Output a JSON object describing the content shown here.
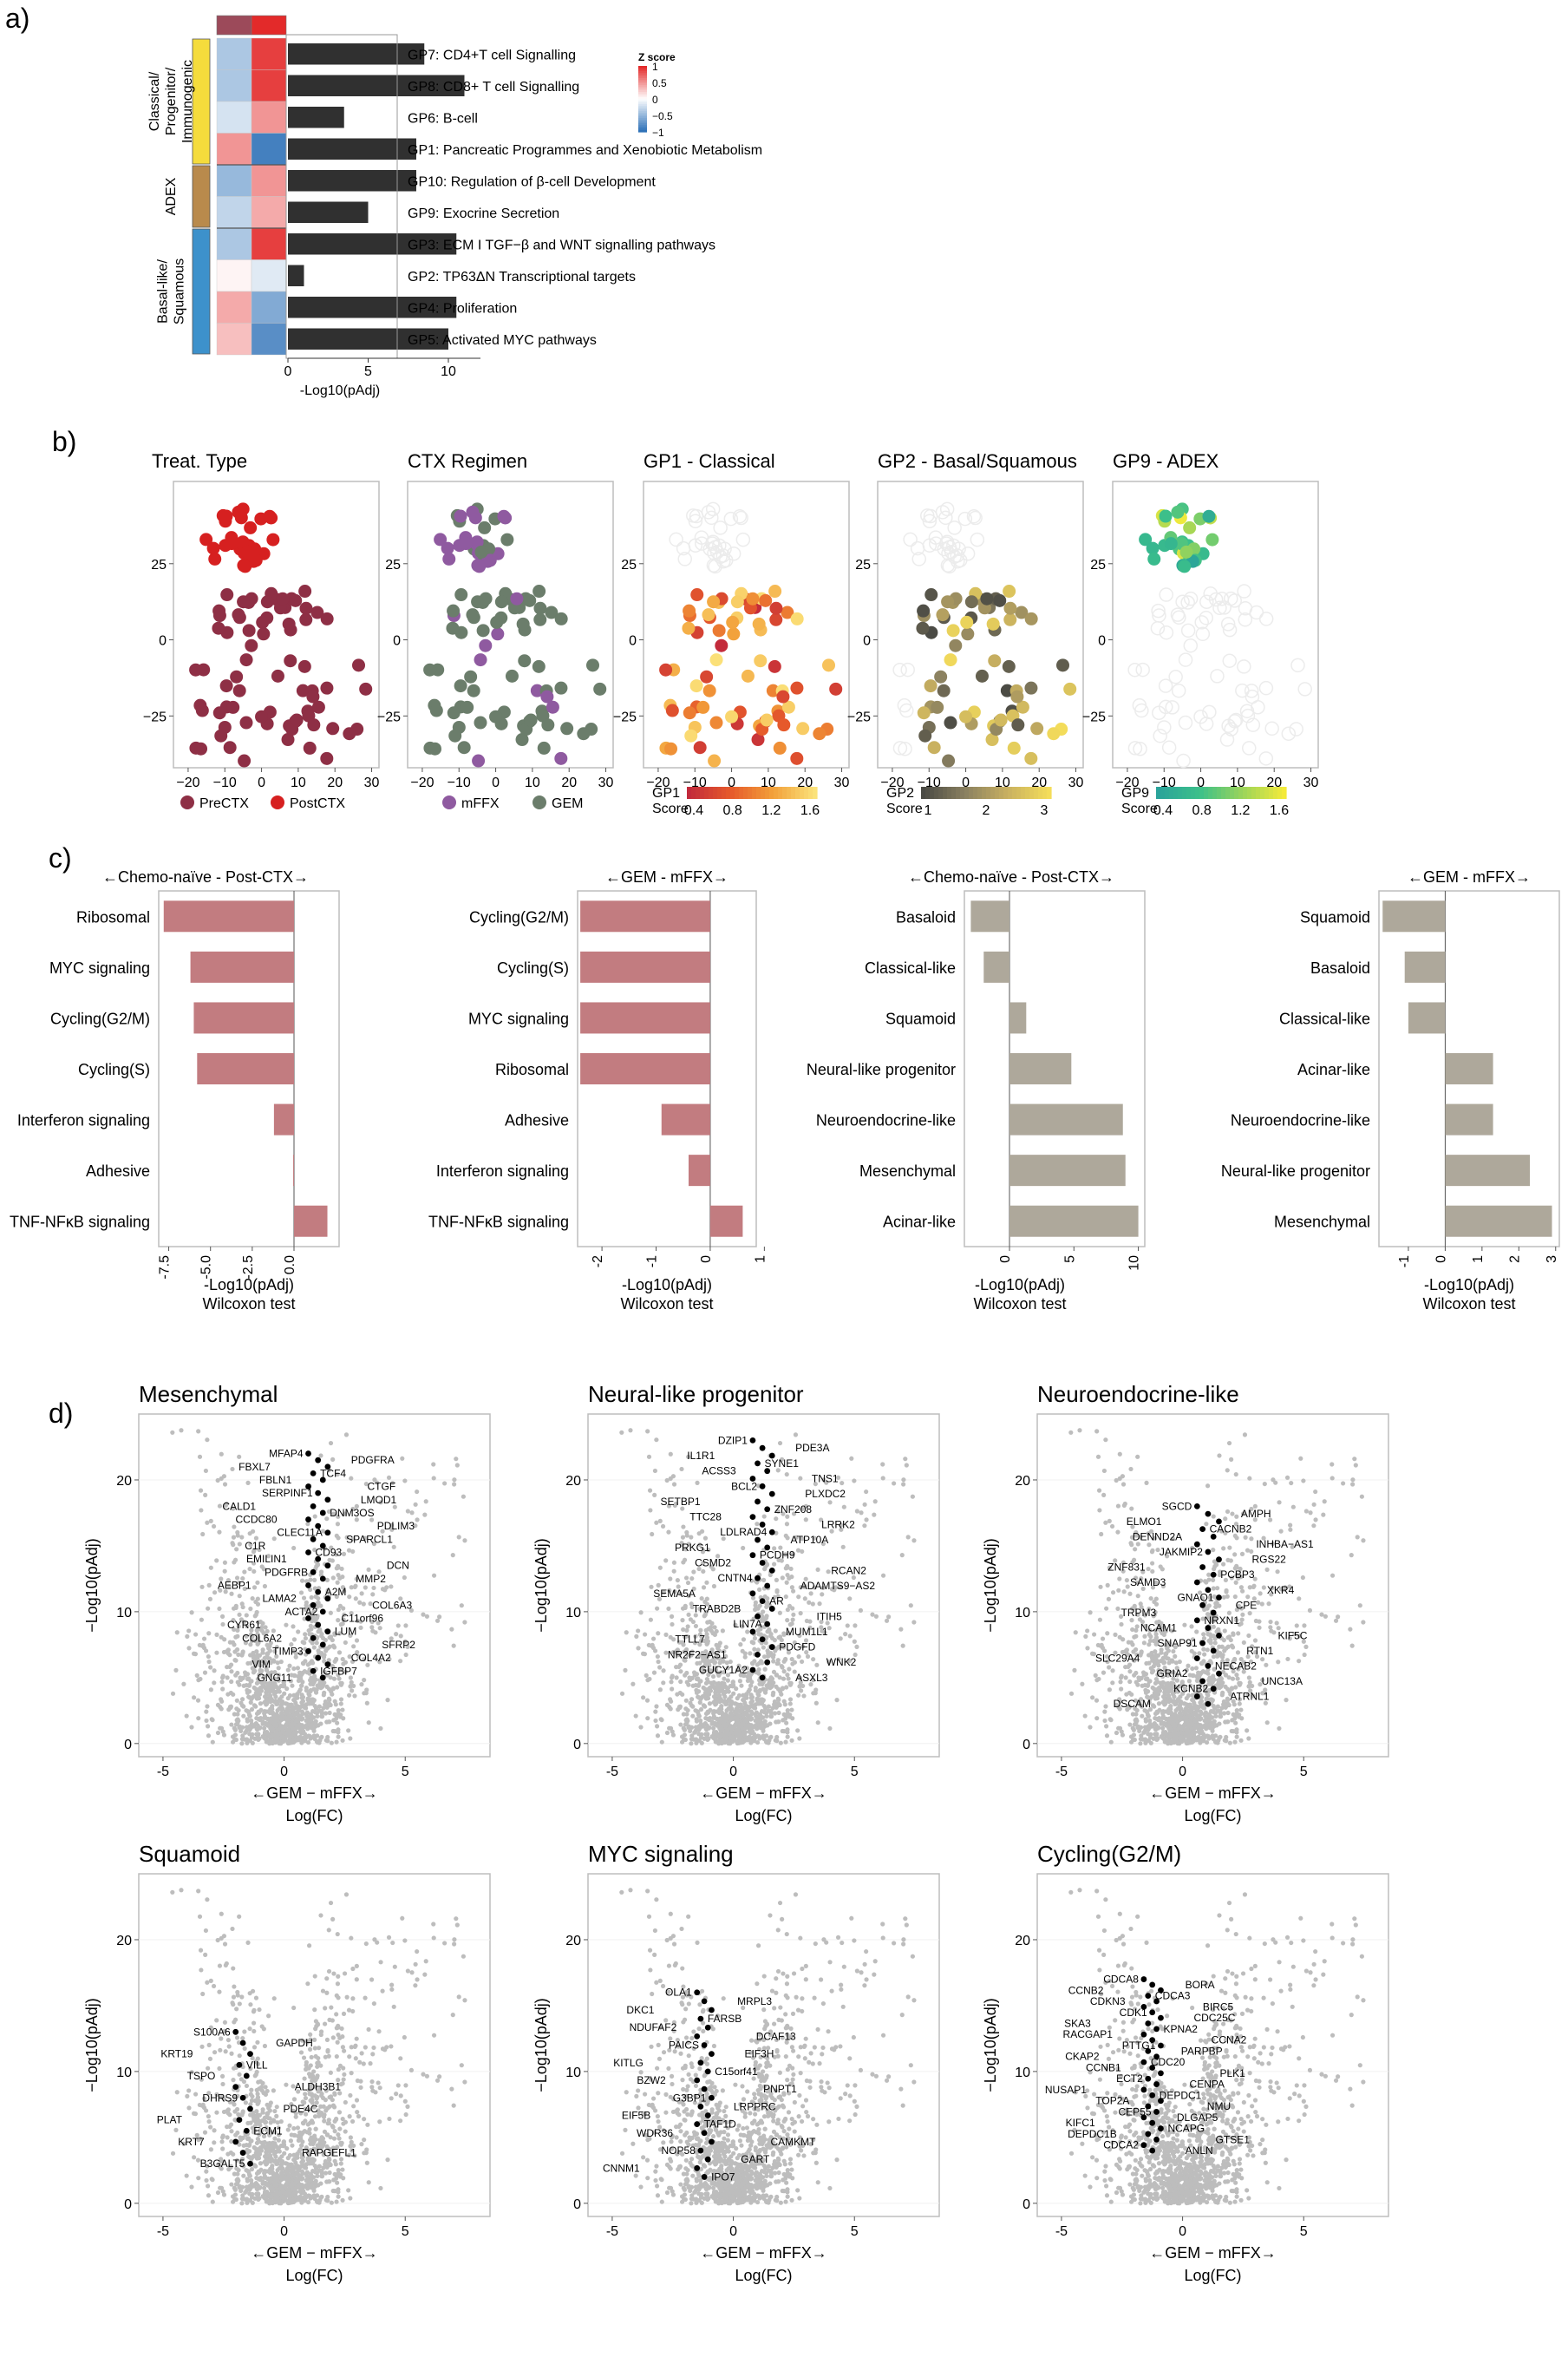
{
  "chart_data": [
    {
      "panel": "a)",
      "type": "heatmap",
      "legend_title": "Z score",
      "legend_ticks": [
        "1",
        "0.5",
        "0",
        "−0.5",
        "−1"
      ],
      "groups": [
        {
          "name": "Classical/ Progenitor/ Immunogenic",
          "color": "#f5dc3c"
        },
        {
          "name": "ADEX",
          "color": "#b98a4c"
        },
        {
          "name": "Basal-like/ Squamous",
          "color": "#3d91cb"
        }
      ],
      "column_colors": [
        "#9c4a5a",
        "#e32a2a"
      ],
      "rows": [
        {
          "label": "GP7: CD4+T cell Signalling",
          "group": 0,
          "z": [
            -0.4,
            0.9
          ],
          "log10padj": 8.5
        },
        {
          "label": "GP8: CD8+ T cell Signalling",
          "group": 0,
          "z": [
            -0.4,
            0.9
          ],
          "log10padj": 11.0
        },
        {
          "label": "GP6: B-cell",
          "group": 0,
          "z": [
            -0.2,
            0.5
          ],
          "log10padj": 3.5
        },
        {
          "label": "GP1: Pancreatic Programmes and Xenobiotic Metabolism",
          "group": 0,
          "z": [
            0.5,
            -0.9
          ],
          "log10padj": 8.0
        },
        {
          "label": "GP10: Regulation of β-cell Development",
          "group": 1,
          "z": [
            -0.5,
            0.5
          ],
          "log10padj": 8.0
        },
        {
          "label": "GP9: Exocrine Secretion",
          "group": 1,
          "z": [
            -0.3,
            0.4
          ],
          "log10padj": 5.0
        },
        {
          "label": "GP3: ECM I TGF−β and WNT signalling pathways",
          "group": 2,
          "z": [
            -0.4,
            0.9
          ],
          "log10padj": 10.5
        },
        {
          "label": "GP2: TP63ΔN Transcriptional targets",
          "group": 2,
          "z": [
            0.05,
            -0.15
          ],
          "log10padj": 1.0
        },
        {
          "label": "GP4: Proliferation",
          "group": 2,
          "z": [
            0.4,
            -0.6
          ],
          "log10padj": 10.5
        },
        {
          "label": "GP5: Activated MYC pathways",
          "group": 2,
          "z": [
            0.3,
            -0.8
          ],
          "log10padj": 10.0
        }
      ],
      "bar_xlabel": "-Log10(pAdj)",
      "bar_ticks": [
        "0",
        "5",
        "10"
      ]
    },
    {
      "panel": "b)",
      "type": "scatter",
      "subplots": [
        {
          "title": "Treat. Type",
          "legend": [
            "PreCTX",
            "PostCTX"
          ]
        },
        {
          "title": "CTX Regimen",
          "legend": [
            "mFFX",
            "GEM"
          ]
        },
        {
          "title": "GP1 - Classical",
          "score_label": [
            "GP1",
            "Score"
          ],
          "score_ticks": [
            "0.4",
            "0.8",
            "1.2",
            "1.6"
          ]
        },
        {
          "title": "GP2 - Basal/Squamous",
          "score_label": [
            "GP2",
            "Score"
          ],
          "score_ticks": [
            "1",
            "2",
            "3"
          ]
        },
        {
          "title": "GP9 - ADEX",
          "score_label": [
            "GP9",
            "Score"
          ],
          "score_ticks": [
            "0.4",
            "0.8",
            "1.2",
            "1.6"
          ]
        }
      ],
      "xticks": [
        "−20",
        "−10",
        "0",
        "10",
        "20",
        "30"
      ],
      "yticks": [
        "25",
        "0",
        "−25"
      ],
      "xlim": [
        -24,
        32
      ],
      "ylim": [
        -42,
        52
      ]
    },
    {
      "panel": "c)",
      "type": "bar",
      "xlabel": "-Log10(pAdj)",
      "xlabel2": "Wilcoxon test",
      "subplots": [
        {
          "header": "←Chemo-naïve - Post-CTX→",
          "color": "#c27c80",
          "categories": [
            "Ribosomal",
            "MYC signaling",
            "Cycling(G2/M)",
            "Cycling(S)",
            "Interferon signaling",
            "Adhesive",
            "TNF-NFκB signaling"
          ],
          "values": [
            -7.8,
            -6.2,
            -6.0,
            -5.8,
            -1.2,
            -0.05,
            2.0
          ],
          "xlim": [
            -8.1,
            2.7
          ],
          "ticks": [
            "-7.5",
            "-5.0",
            "-2.5",
            "0.0"
          ]
        },
        {
          "header": "←GEM - mFFX→",
          "color": "#c27c80",
          "categories": [
            "Cycling(G2/M)",
            "Cycling(S)",
            "MYC signaling",
            "Ribosomal",
            "Adhesive",
            "Interferon signaling",
            "TNF-NFκB signaling"
          ],
          "values": [
            -2.4,
            -2.4,
            -2.4,
            -2.4,
            -0.9,
            -0.4,
            0.6
          ],
          "xlim": [
            -2.45,
            0.85
          ],
          "ticks": [
            "-2",
            "-1",
            "0",
            "1"
          ]
        },
        {
          "header": "←Chemo-naïve - Post-CTX→",
          "color": "#aea89b",
          "categories": [
            "Basaloid",
            "Classical-like",
            "Squamoid",
            "Neural-like progenitor",
            "Neuroendocrine-like",
            "Mesenchymal",
            "Acinar-like"
          ],
          "values": [
            -3.0,
            -2.0,
            1.3,
            4.8,
            8.8,
            9.0,
            10.0
          ],
          "xlim": [
            -3.5,
            10.5
          ],
          "ticks": [
            "0",
            "5",
            "10"
          ]
        },
        {
          "header": "←GEM - mFFX→",
          "color": "#aea89b",
          "categories": [
            "Squamoid",
            "Basaloid",
            "Classical-like",
            "Acinar-like",
            "Neuroendocrine-like",
            "Neural-like progenitor",
            "Mesenchymal"
          ],
          "values": [
            -1.7,
            -1.1,
            -1.0,
            1.3,
            1.3,
            2.3,
            2.9
          ],
          "xlim": [
            -1.8,
            3.1
          ],
          "ticks": [
            "-1",
            "0",
            "1",
            "2",
            "3"
          ]
        }
      ]
    },
    {
      "panel": "d)",
      "type": "scatter",
      "xlabel_arrow": "←GEM − mFFX→",
      "xlabel": "Log(FC)",
      "ylabel": "−Log10(pAdj)",
      "xticks": [
        "-5",
        "0",
        "5"
      ],
      "yticks": [
        "0",
        "10",
        "20"
      ],
      "xlim": [
        -6,
        8.5
      ],
      "ylim": [
        -1,
        25
      ],
      "subplots": [
        {
          "title": "Mesenchymal",
          "genes": [
            "MFAP4",
            "PDGFRA",
            "FBXL7",
            "TCF4",
            "FBLN1",
            "CTGF",
            "SERPINF1",
            "LMOD1",
            "CALD1",
            "DNM3OS",
            "CCDC80",
            "PDLIM3",
            "CLEC11A",
            "SPARCL1",
            "C1R",
            "CD93",
            "EMILIN1",
            "DCN",
            "PDGFRB",
            "MMP2",
            "AEBP1",
            "A2M",
            "LAMA2",
            "COL6A3",
            "ACTA2",
            "C11orf96",
            "CYR61",
            "LUM",
            "COL6A2",
            "SFRP2",
            "TIMP3",
            "COL4A2",
            "VIM",
            "IGFBP7",
            "GNG11"
          ]
        },
        {
          "title": "Neural-like progenitor",
          "genes": [
            "DZIP1",
            "PDE3A",
            "IL1R1",
            "SYNE1",
            "ACSS3",
            "TNS1",
            "BCL2",
            "PLXDC2",
            "SETBP1",
            "ZNF208",
            "TTC28",
            "LRRK2",
            "LDLRAD4",
            "ATP10A",
            "PRKG1",
            "PCDH9",
            "CSMD2",
            "RCAN2",
            "CNTN4",
            "ADAMTS9−AS2",
            "SEMA5A",
            "AR",
            "TRABD2B",
            "ITIH5",
            "LIN7A",
            "MUM1L1",
            "TTLL7",
            "PDGFD",
            "NR2F2−AS1",
            "WNK2",
            "GUCY1A2",
            "ASXL3"
          ]
        },
        {
          "title": "Neuroendocrine-like",
          "genes": [
            "SGCD",
            "AMPH",
            "ELMO1",
            "CACNB2",
            "DENND2A",
            "INHBA−AS1",
            "JAKMIP2",
            "RGS22",
            "ZNF831",
            "PCBP3",
            "SAMD3",
            "XKR4",
            "GNAO1",
            "CPE",
            "TRPM3",
            "NRXN1",
            "NCAM1",
            "KIF5C",
            "SNAP91",
            "RTN1",
            "SLC29A4",
            "NECAB2",
            "GRIA2",
            "UNC13A",
            "KCNB2",
            "ATRNL1",
            "DSCAM"
          ]
        },
        {
          "title": "Squamoid",
          "genes": [
            "S100A6",
            "GAPDH",
            "KRT19",
            "VILL",
            "TSPO",
            "ALDH3B1",
            "DHRS9",
            "PDE4C",
            "PLAT",
            "ECM1",
            "KRT7",
            "RAPGEFL1",
            "B3GALT5"
          ]
        },
        {
          "title": "MYC signaling",
          "genes": [
            "OLA1",
            "MRPL3",
            "DKC1",
            "FARSB",
            "NDUFAF2",
            "DCAF13",
            "PAICS",
            "EIF3H",
            "KITLG",
            "C15orf41",
            "BZW2",
            "PNPT1",
            "G3BP1",
            "LRPPRC",
            "EIF5B",
            "TAF1D",
            "WDR36",
            "CAMKMT",
            "NOP58",
            "GART",
            "CNNM1",
            "IPO7"
          ]
        },
        {
          "title": "Cycling(G2/M)",
          "genes": [
            "CDCA8",
            "BORA",
            "CCNB2",
            "CDCA3",
            "CDKN3",
            "BIRC5",
            "CDK1",
            "CDC25C",
            "SKA3",
            "KPNA2",
            "RACGAP1",
            "CCNA2",
            "PTTG1",
            "PARPBP",
            "CKAP2",
            "CDC20",
            "CCNB1",
            "PLK1",
            "ECT2",
            "CENPA",
            "NUSAP1",
            "DEPDC1",
            "TOP2A",
            "NMU",
            "CEP55",
            "DLGAP5",
            "KIFC1",
            "NCAPG",
            "DEPDC1B",
            "GTSE1",
            "CDCA2",
            "ANLN"
          ]
        }
      ]
    }
  ]
}
